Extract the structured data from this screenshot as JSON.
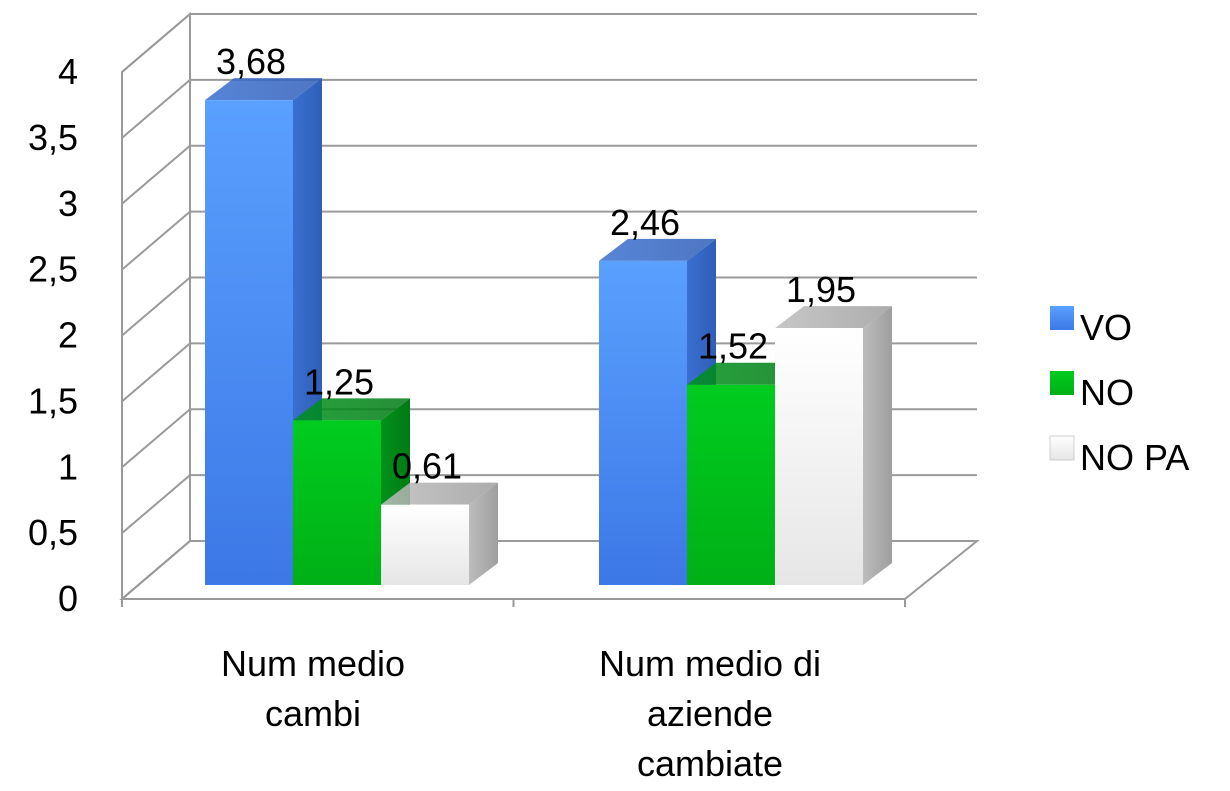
{
  "chart_data": {
    "type": "bar",
    "categories": [
      [
        "Num medio",
        "cambi"
      ],
      [
        "Num medio di",
        "aziende",
        "cambiate"
      ]
    ],
    "series": [
      {
        "name": "VO",
        "values": [
          3.68,
          2.46
        ],
        "labels": [
          "3,68",
          "2,46"
        ],
        "color": "#4f8ef7"
      },
      {
        "name": "NO",
        "values": [
          1.25,
          1.52
        ],
        "labels": [
          "1,25",
          "1,52"
        ],
        "color": "#00c21a"
      },
      {
        "name": "NO PA",
        "values": [
          0.61,
          1.95
        ],
        "labels": [
          "0,61",
          "1,95"
        ],
        "color": "#f2f2f2"
      }
    ],
    "yticks": [
      {
        "value": 0,
        "label": "0"
      },
      {
        "value": 0.5,
        "label": "0,5"
      },
      {
        "value": 1,
        "label": "1"
      },
      {
        "value": 1.5,
        "label": "1,5"
      },
      {
        "value": 2,
        "label": "2"
      },
      {
        "value": 2.5,
        "label": "2,5"
      },
      {
        "value": 3,
        "label": "3"
      },
      {
        "value": 3.5,
        "label": "3,5"
      },
      {
        "value": 4,
        "label": "4"
      }
    ],
    "ylim": [
      0,
      4
    ],
    "grid": true,
    "style": "3d-clustered-column",
    "legend_position": "right"
  }
}
